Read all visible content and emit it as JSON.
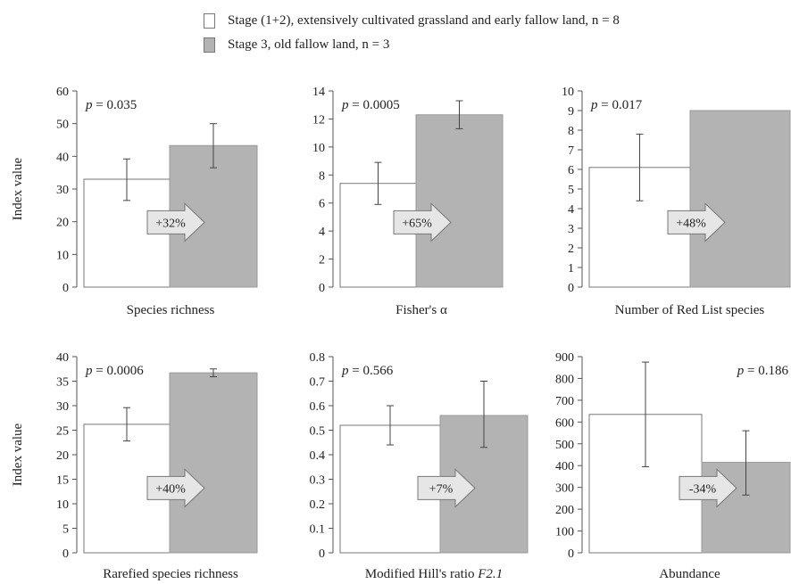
{
  "legend": {
    "items": [
      {
        "label": "Stage (1+2), extensively cultivated grassland and early fallow land, n = 8",
        "color": "#ffffff"
      },
      {
        "label": "Stage 3, old fallow land, n = 3",
        "color": "#b3b3b3"
      }
    ]
  },
  "colors": {
    "stage12": "#ffffff",
    "stage3": "#b3b3b3",
    "arrow": "#e6e6e6",
    "axis": "#555555"
  },
  "chart_data": [
    {
      "type": "bar",
      "title": "Species richness",
      "ylabel": "Index value",
      "ylim": [
        0,
        60
      ],
      "yticks": [
        "0",
        "10",
        "20",
        "30",
        "40",
        "50",
        "60"
      ],
      "series": [
        {
          "name": "Stage (1+2)",
          "value": 33,
          "err_low": 26.5,
          "err_high": 39.2
        },
        {
          "name": "Stage 3",
          "value": 43.3,
          "err_low": 36.5,
          "err_high": 50
        }
      ],
      "pvalue": "p = 0.035",
      "change": "+32%"
    },
    {
      "type": "bar",
      "title": "Fisher's α",
      "ylabel": "",
      "ylim": [
        0,
        14
      ],
      "yticks": [
        "0",
        "2",
        "4",
        "6",
        "8",
        "10",
        "12",
        "14"
      ],
      "series": [
        {
          "name": "Stage (1+2)",
          "value": 7.4,
          "err_low": 5.9,
          "err_high": 8.9
        },
        {
          "name": "Stage 3",
          "value": 12.3,
          "err_low": 11.3,
          "err_high": 13.3
        }
      ],
      "pvalue": "p = 0.0005",
      "change": "+65%"
    },
    {
      "type": "bar",
      "title": "Number of Red List species",
      "ylabel": "",
      "ylim": [
        0,
        10
      ],
      "yticks": [
        "0",
        "1",
        "2",
        "3",
        "4",
        "5",
        "6",
        "7",
        "8",
        "9",
        "10"
      ],
      "series": [
        {
          "name": "Stage (1+2)",
          "value": 6.1,
          "err_low": 4.4,
          "err_high": 7.8
        },
        {
          "name": "Stage 3",
          "value": 9.0,
          "err_low": null,
          "err_high": null
        }
      ],
      "pvalue": "p = 0.017",
      "change": "+48%"
    },
    {
      "type": "bar",
      "title": "Rarefied species richness",
      "ylabel": "Index value",
      "ylim": [
        0,
        40
      ],
      "yticks": [
        "0",
        "5",
        "10",
        "15",
        "20",
        "25",
        "30",
        "35",
        "40"
      ],
      "series": [
        {
          "name": "Stage (1+2)",
          "value": 26.2,
          "err_low": 22.8,
          "err_high": 29.6
        },
        {
          "name": "Stage 3",
          "value": 36.7,
          "err_low": 35.9,
          "err_high": 37.5
        }
      ],
      "pvalue": "p = 0.0006",
      "change": "+40%"
    },
    {
      "type": "bar",
      "title": "Modified Hill's ratio ",
      "title_italic": "F2.1",
      "ylabel": "",
      "ylim": [
        0,
        0.8
      ],
      "yticks": [
        "0",
        "0.1",
        "0.2",
        "0.3",
        "0.4",
        "0.5",
        "0.6",
        "0.7",
        "0.8"
      ],
      "series": [
        {
          "name": "Stage (1+2)",
          "value": 0.52,
          "err_low": 0.44,
          "err_high": 0.6
        },
        {
          "name": "Stage 3",
          "value": 0.56,
          "err_low": 0.43,
          "err_high": 0.7
        }
      ],
      "pvalue": "p = 0.566",
      "change": "+7%"
    },
    {
      "type": "bar",
      "title": "Abundance",
      "ylabel": "",
      "ylim": [
        0,
        900
      ],
      "yticks": [
        "0",
        "100",
        "200",
        "300",
        "400",
        "500",
        "600",
        "700",
        "800",
        "900"
      ],
      "series": [
        {
          "name": "Stage (1+2)",
          "value": 635,
          "err_low": 395,
          "err_high": 875
        },
        {
          "name": "Stage 3",
          "value": 415,
          "err_low": 265,
          "err_high": 560
        }
      ],
      "pvalue": "p = 0.186",
      "change": "-34%"
    }
  ]
}
